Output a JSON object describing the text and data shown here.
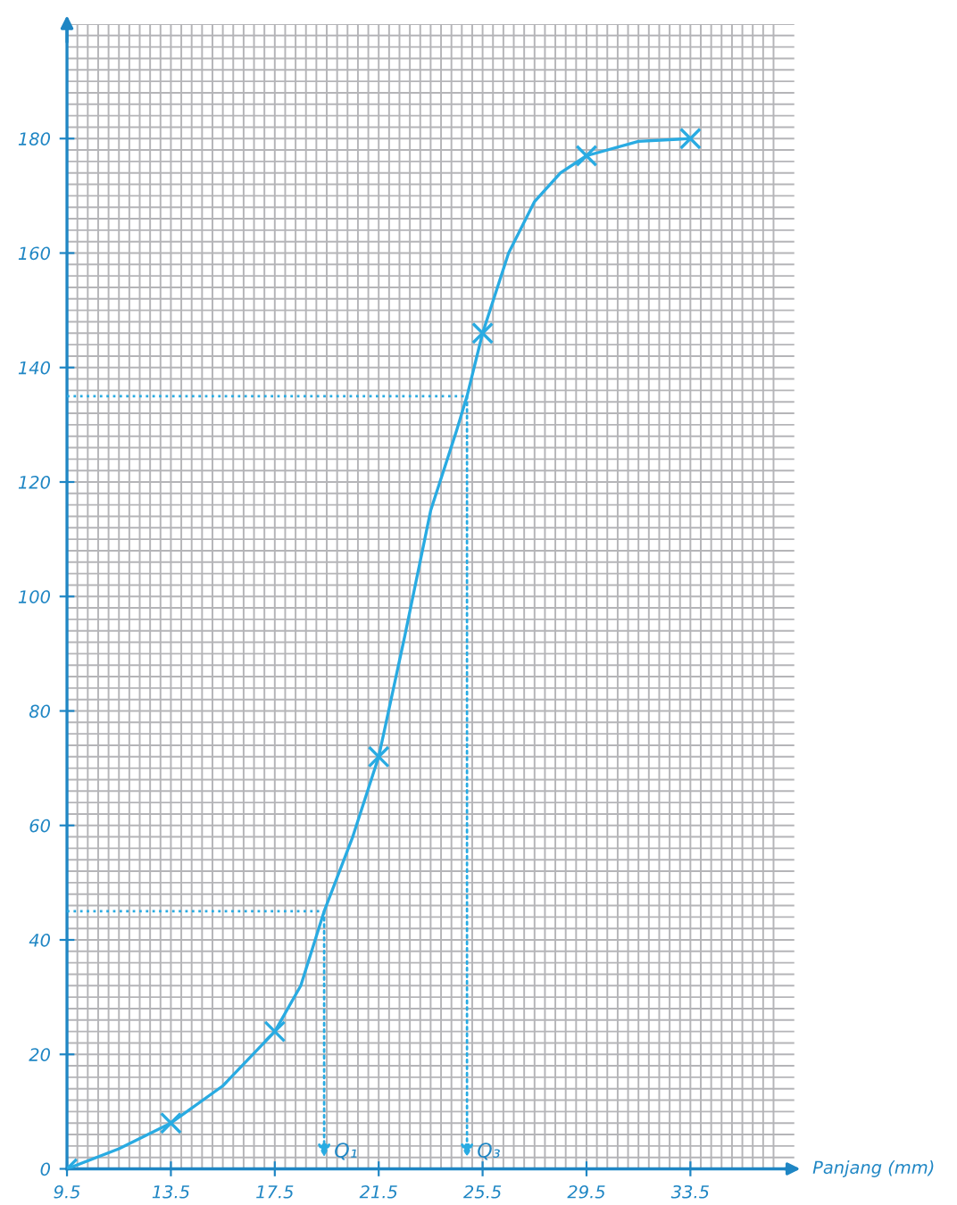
{
  "chart_data": {
    "type": "line",
    "xlabel": "Panjang (mm)",
    "x": [
      9.5,
      13.5,
      17.5,
      21.5,
      25.5,
      29.5,
      33.5
    ],
    "series": [
      {
        "color": "#29abe2",
        "x": [
          9.5,
          11.5,
          13.5,
          15.5,
          17.5,
          18.5,
          19.4,
          20.5,
          21.5,
          22.5,
          23.5,
          24.5,
          24.9,
          25.5,
          26.5,
          27.5,
          28.5,
          29.5,
          31.5,
          33.5
        ],
        "values": [
          0,
          3.5,
          8,
          14.5,
          24,
          32,
          45,
          58,
          72,
          93,
          115,
          129,
          135,
          146,
          160,
          169,
          174,
          177,
          179.5,
          180
        ],
        "marker": "none",
        "line_style": "solid"
      },
      {
        "type": "scatter",
        "color": "#29abe2",
        "values": [
          0,
          8,
          24,
          72,
          146,
          177,
          180
        ],
        "marker": "cross"
      },
      {
        "type": "line",
        "color": "#29abe2",
        "x": [
          9.5,
          19.4,
          19.4
        ],
        "values": [
          45,
          45,
          2
        ],
        "marker": "none",
        "line_style": "dotted"
      },
      {
        "type": "line",
        "color": "#29abe2",
        "x": [
          9.5,
          24.9,
          24.9
        ],
        "values": [
          135,
          135,
          2
        ],
        "marker": "none",
        "line_style": "dotted"
      }
    ],
    "annotations": [
      {
        "text": "Q₁",
        "x": 19.4,
        "y": 2
      },
      {
        "text": "Q₃",
        "x": 24.9,
        "y": 2
      }
    ],
    "xlim": [
      9.5,
      37.5
    ],
    "ylim": [
      0,
      200
    ],
    "xticks": [
      9.5,
      13.5,
      17.5,
      21.5,
      25.5,
      29.5,
      33.5
    ],
    "yticks": [
      0,
      20,
      40,
      60,
      80,
      100,
      120,
      140,
      160,
      180
    ],
    "grid": true
  }
}
